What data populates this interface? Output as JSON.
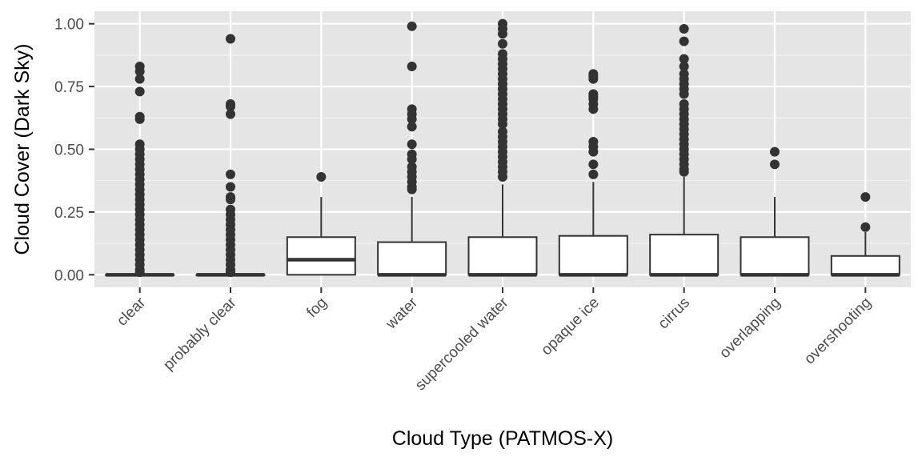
{
  "chart_data": {
    "type": "boxplot",
    "title": "",
    "xlabel": "Cloud Type (PATMOS-X)",
    "ylabel": "Cloud Cover (Dark Sky)",
    "ylim": [
      -0.05,
      1.05
    ],
    "yticks": [
      0.0,
      0.25,
      0.5,
      0.75,
      1.0
    ],
    "ytick_labels": [
      "0.00",
      "0.25",
      "0.50",
      "0.75",
      "1.00"
    ],
    "grid": true,
    "categories": [
      "clear",
      "probably clear",
      "fog",
      "water",
      "supercooled water",
      "opaque ice",
      "cirrus",
      "overlapping",
      "overshooting"
    ],
    "boxes": [
      {
        "q1": 0.0,
        "median": 0.0,
        "q3": 0.0,
        "whisker_low": 0.0,
        "whisker_high": 0.0,
        "outliers": [
          0.83,
          0.81,
          0.78,
          0.73,
          0.63,
          0.62,
          0.52,
          0.5,
          0.48,
          0.46,
          0.44,
          0.42,
          0.4,
          0.38,
          0.36,
          0.34,
          0.32,
          0.3,
          0.28,
          0.26,
          0.24,
          0.22,
          0.2,
          0.18,
          0.16,
          0.14,
          0.12,
          0.1,
          0.08,
          0.06,
          0.04,
          0.02,
          0.01
        ]
      },
      {
        "q1": 0.0,
        "median": 0.0,
        "q3": 0.0,
        "whisker_low": 0.0,
        "whisker_high": 0.0,
        "outliers": [
          0.94,
          0.68,
          0.67,
          0.64,
          0.4,
          0.35,
          0.31,
          0.3,
          0.26,
          0.24,
          0.22,
          0.2,
          0.18,
          0.16,
          0.14,
          0.12,
          0.1,
          0.08,
          0.06,
          0.04,
          0.02,
          0.01
        ]
      },
      {
        "q1": 0.0,
        "median": 0.06,
        "q3": 0.15,
        "whisker_low": 0.0,
        "whisker_high": 0.31,
        "outliers": [
          0.39
        ]
      },
      {
        "q1": 0.0,
        "median": 0.0,
        "q3": 0.13,
        "whisker_low": 0.0,
        "whisker_high": 0.31,
        "outliers": [
          0.99,
          0.83,
          0.66,
          0.64,
          0.62,
          0.59,
          0.52,
          0.48,
          0.46,
          0.43,
          0.41,
          0.39,
          0.37,
          0.35,
          0.34
        ]
      },
      {
        "q1": 0.0,
        "median": 0.0,
        "q3": 0.15,
        "whisker_low": 0.0,
        "whisker_high": 0.36,
        "outliers": [
          1.0,
          0.98,
          0.96,
          0.92,
          0.88,
          0.86,
          0.84,
          0.82,
          0.8,
          0.78,
          0.76,
          0.74,
          0.72,
          0.7,
          0.68,
          0.66,
          0.64,
          0.62,
          0.6,
          0.57,
          0.55,
          0.53,
          0.51,
          0.49,
          0.47,
          0.45,
          0.43,
          0.41,
          0.39
        ]
      },
      {
        "q1": 0.0,
        "median": 0.0,
        "q3": 0.155,
        "whisker_low": 0.0,
        "whisker_high": 0.37,
        "outliers": [
          0.8,
          0.79,
          0.78,
          0.72,
          0.71,
          0.7,
          0.68,
          0.66,
          0.53,
          0.51,
          0.49,
          0.44,
          0.4
        ]
      },
      {
        "q1": 0.0,
        "median": 0.0,
        "q3": 0.16,
        "whisker_low": 0.0,
        "whisker_high": 0.39,
        "outliers": [
          0.98,
          0.93,
          0.86,
          0.83,
          0.8,
          0.78,
          0.76,
          0.74,
          0.72,
          0.68,
          0.66,
          0.64,
          0.62,
          0.6,
          0.58,
          0.56,
          0.54,
          0.52,
          0.5,
          0.48,
          0.46,
          0.44,
          0.42,
          0.41
        ]
      },
      {
        "q1": 0.0,
        "median": 0.0,
        "q3": 0.15,
        "whisker_low": 0.0,
        "whisker_high": 0.31,
        "outliers": [
          0.49,
          0.44
        ]
      },
      {
        "q1": 0.0,
        "median": 0.0,
        "q3": 0.075,
        "whisker_low": 0.0,
        "whisker_high": 0.17,
        "outliers": [
          0.31,
          0.19
        ]
      }
    ]
  }
}
